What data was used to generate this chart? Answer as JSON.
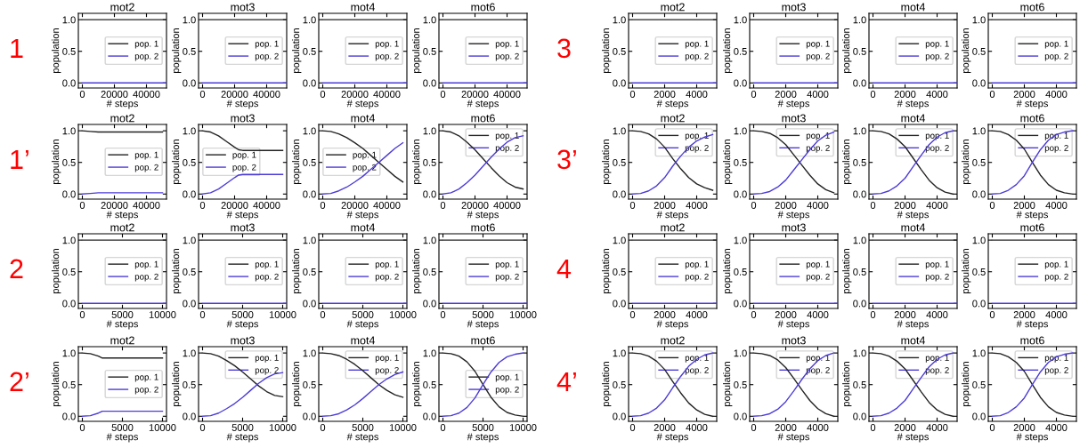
{
  "chart_data": [
    {
      "type": "line",
      "annotations": [
        "1"
      ],
      "title": "mot2",
      "xlabel": "# steps",
      "ylabel": "population",
      "xlim": [
        -2500,
        52500
      ],
      "xticks": [
        0,
        20000,
        40000
      ],
      "ylim": [
        -0.08,
        1.1
      ],
      "yticks": [
        {
          "value": 0,
          "label": "0.0"
        },
        {
          "value": 0.5,
          "label": "0.5"
        },
        {
          "value": 1,
          "label": "1.0"
        }
      ],
      "legend": "right",
      "x": [
        0,
        52000
      ],
      "series": [
        {
          "name": "pop. 1",
          "color": "#222222",
          "values": [
            1.0,
            1.0
          ]
        },
        {
          "name": "pop. 2",
          "color": "#4b3bd6",
          "values": [
            0.0,
            0.0
          ]
        }
      ]
    },
    {
      "type": "line",
      "title": "mot3",
      "xlabel": "# steps",
      "ylabel": "population",
      "xlim": [
        -2500,
        52500
      ],
      "xticks": [
        0,
        20000,
        40000
      ],
      "ylim": [
        -0.08,
        1.1
      ],
      "yticks": [
        {
          "value": 0,
          "label": "0.0"
        },
        {
          "value": 0.5,
          "label": "0.5"
        },
        {
          "value": 1,
          "label": "1.0"
        }
      ],
      "legend": "right",
      "x": [
        0,
        52000
      ],
      "series": [
        {
          "name": "pop. 1",
          "color": "#222222",
          "values": [
            1.0,
            1.0
          ]
        },
        {
          "name": "pop. 2",
          "color": "#4b3bd6",
          "values": [
            0.0,
            0.0
          ]
        }
      ]
    },
    {
      "type": "line",
      "title": "mot4",
      "xlabel": "# steps",
      "ylabel": "population",
      "xlim": [
        -2500,
        52500
      ],
      "xticks": [
        0,
        20000,
        40000
      ],
      "ylim": [
        -0.08,
        1.1
      ],
      "yticks": [
        {
          "value": 0,
          "label": "0.0"
        },
        {
          "value": 0.5,
          "label": "0.5"
        },
        {
          "value": 1,
          "label": "1.0"
        }
      ],
      "legend": "right",
      "x": [
        0,
        52000
      ],
      "series": [
        {
          "name": "pop. 1",
          "color": "#222222",
          "values": [
            1.0,
            1.0
          ]
        },
        {
          "name": "pop. 2",
          "color": "#4b3bd6",
          "values": [
            0.0,
            0.0
          ]
        }
      ]
    },
    {
      "type": "line",
      "title": "mot6",
      "xlabel": "# steps",
      "ylabel": "population",
      "xlim": [
        -2500,
        52500
      ],
      "xticks": [
        0,
        20000,
        40000
      ],
      "ylim": [
        -0.08,
        1.1
      ],
      "yticks": [
        {
          "value": 0,
          "label": "0.0"
        },
        {
          "value": 0.5,
          "label": "0.5"
        },
        {
          "value": 1,
          "label": "1.0"
        }
      ],
      "legend": "right",
      "x": [
        0,
        52000
      ],
      "series": [
        {
          "name": "pop. 1",
          "color": "#222222",
          "values": [
            1.0,
            1.0
          ]
        },
        {
          "name": "pop. 2",
          "color": "#4b3bd6",
          "values": [
            0.0,
            0.0
          ]
        }
      ]
    },
    {
      "type": "line",
      "annotations": [
        "3"
      ],
      "title": "mot2",
      "xlabel": "# steps",
      "ylabel": "population",
      "xlim": [
        -250,
        5250
      ],
      "xticks": [
        0,
        2000,
        4000
      ],
      "ylim": [
        -0.08,
        1.1
      ],
      "yticks": [
        {
          "value": 0,
          "label": "0.0"
        },
        {
          "value": 0.5,
          "label": "0.5"
        },
        {
          "value": 1,
          "label": "1.0"
        }
      ],
      "legend": "right",
      "x": [
        0,
        5200
      ],
      "series": [
        {
          "name": "pop. 1",
          "color": "#222222",
          "values": [
            1.0,
            1.0
          ]
        },
        {
          "name": "pop. 2",
          "color": "#4b3bd6",
          "values": [
            0.0,
            0.0
          ]
        }
      ]
    },
    {
      "type": "line",
      "title": "mot3",
      "xlabel": "# steps",
      "ylabel": "population",
      "xlim": [
        -250,
        5250
      ],
      "xticks": [
        0,
        2000,
        4000
      ],
      "ylim": [
        -0.08,
        1.1
      ],
      "yticks": [
        {
          "value": 0,
          "label": "0.0"
        },
        {
          "value": 0.5,
          "label": "0.5"
        },
        {
          "value": 1,
          "label": "1.0"
        }
      ],
      "legend": "right",
      "x": [
        0,
        5200
      ],
      "series": [
        {
          "name": "pop. 1",
          "color": "#222222",
          "values": [
            1.0,
            1.0
          ]
        },
        {
          "name": "pop. 2",
          "color": "#4b3bd6",
          "values": [
            0.0,
            0.0
          ]
        }
      ]
    },
    {
      "type": "line",
      "title": "mot4",
      "xlabel": "# steps",
      "ylabel": "population",
      "xlim": [
        -250,
        5250
      ],
      "xticks": [
        0,
        2000,
        4000
      ],
      "ylim": [
        -0.08,
        1.1
      ],
      "yticks": [
        {
          "value": 0,
          "label": "0.0"
        },
        {
          "value": 0.5,
          "label": "0.5"
        },
        {
          "value": 1,
          "label": "1.0"
        }
      ],
      "legend": "right",
      "x": [
        0,
        5200
      ],
      "series": [
        {
          "name": "pop. 1",
          "color": "#222222",
          "values": [
            1.0,
            1.0
          ]
        },
        {
          "name": "pop. 2",
          "color": "#4b3bd6",
          "values": [
            0.0,
            0.0
          ]
        }
      ]
    },
    {
      "type": "line",
      "title": "mot6",
      "xlabel": "# steps",
      "ylabel": "population",
      "xlim": [
        -250,
        5250
      ],
      "xticks": [
        0,
        2000,
        4000
      ],
      "ylim": [
        -0.08,
        1.1
      ],
      "yticks": [
        {
          "value": 0,
          "label": "0.0"
        },
        {
          "value": 0.5,
          "label": "0.5"
        },
        {
          "value": 1,
          "label": "1.0"
        }
      ],
      "legend": "right",
      "x": [
        0,
        5200
      ],
      "series": [
        {
          "name": "pop. 1",
          "color": "#222222",
          "values": [
            1.0,
            1.0
          ]
        },
        {
          "name": "pop. 2",
          "color": "#4b3bd6",
          "values": [
            0.0,
            0.0
          ]
        }
      ]
    },
    {
      "type": "line",
      "annotations": [
        "1’"
      ],
      "title": "mot2",
      "xlabel": "# steps",
      "ylabel": "population",
      "xlim": [
        -2500,
        52500
      ],
      "xticks": [
        0,
        20000,
        40000
      ],
      "ylim": [
        -0.08,
        1.1
      ],
      "yticks": [
        {
          "value": 0,
          "label": "0.0"
        },
        {
          "value": 0.5,
          "label": "0.5"
        },
        {
          "value": 1,
          "label": "1.0"
        }
      ],
      "legend": "right",
      "x": [
        0,
        5000,
        10000,
        50000
      ],
      "series": [
        {
          "name": "pop. 1",
          "color": "#222222",
          "values": [
            1.0,
            0.99,
            0.98,
            0.98
          ]
        },
        {
          "name": "pop. 2",
          "color": "#4b3bd6",
          "values": [
            0.0,
            0.01,
            0.02,
            0.02
          ]
        }
      ]
    },
    {
      "type": "line",
      "title": "mot3",
      "xlabel": "# steps",
      "ylabel": "population",
      "xlim": [
        -2500,
        52500
      ],
      "xticks": [
        0,
        20000,
        40000
      ],
      "ylim": [
        -0.08,
        1.1
      ],
      "yticks": [
        {
          "value": 0,
          "label": "0.0"
        },
        {
          "value": 0.5,
          "label": "0.5"
        },
        {
          "value": 1,
          "label": "1.0"
        }
      ],
      "legend": "left",
      "x": [
        0,
        5000,
        10000,
        15000,
        20000,
        22500,
        25000,
        50000
      ],
      "series": [
        {
          "name": "pop. 1",
          "color": "#222222",
          "values": [
            1.0,
            0.98,
            0.92,
            0.83,
            0.74,
            0.7,
            0.69,
            0.69
          ]
        },
        {
          "name": "pop. 2",
          "color": "#4b3bd6",
          "values": [
            0.0,
            0.02,
            0.08,
            0.17,
            0.26,
            0.3,
            0.31,
            0.31
          ]
        }
      ]
    },
    {
      "type": "line",
      "title": "mot4",
      "xlabel": "# steps",
      "ylabel": "population",
      "xlim": [
        -2500,
        52500
      ],
      "xticks": [
        0,
        20000,
        40000
      ],
      "ylim": [
        -0.08,
        1.1
      ],
      "yticks": [
        {
          "value": 0,
          "label": "0.0"
        },
        {
          "value": 0.5,
          "label": "0.5"
        },
        {
          "value": 1,
          "label": "1.0"
        }
      ],
      "legend": "left",
      "x": [
        0,
        5000,
        10000,
        15000,
        20000,
        25000,
        30000,
        35000,
        40000,
        45000,
        50000
      ],
      "series": [
        {
          "name": "pop. 1",
          "color": "#222222",
          "values": [
            1.0,
            0.99,
            0.95,
            0.89,
            0.81,
            0.72,
            0.61,
            0.5,
            0.39,
            0.28,
            0.19
          ]
        },
        {
          "name": "pop. 2",
          "color": "#4b3bd6",
          "values": [
            0.0,
            0.01,
            0.05,
            0.11,
            0.19,
            0.28,
            0.39,
            0.5,
            0.61,
            0.72,
            0.81
          ]
        }
      ]
    },
    {
      "type": "line",
      "title": "mot6",
      "xlabel": "# steps",
      "ylabel": "population",
      "xlim": [
        -2500,
        52500
      ],
      "xticks": [
        0,
        20000,
        40000
      ],
      "ylim": [
        -0.08,
        1.1
      ],
      "yticks": [
        {
          "value": 0,
          "label": "0.0"
        },
        {
          "value": 0.5,
          "label": "0.5"
        },
        {
          "value": 1,
          "label": "1.0"
        }
      ],
      "legend": "top right",
      "x": [
        0,
        5000,
        10000,
        15000,
        20000,
        25000,
        30000,
        35000,
        40000,
        45000,
        50000
      ],
      "series": [
        {
          "name": "pop. 1",
          "color": "#222222",
          "values": [
            1.0,
            0.98,
            0.92,
            0.82,
            0.7,
            0.56,
            0.42,
            0.29,
            0.18,
            0.11,
            0.08
          ]
        },
        {
          "name": "pop. 2",
          "color": "#4b3bd6",
          "values": [
            0.0,
            0.02,
            0.08,
            0.18,
            0.3,
            0.44,
            0.58,
            0.71,
            0.82,
            0.89,
            0.92
          ]
        }
      ]
    },
    {
      "type": "line",
      "annotations": [
        "3’"
      ],
      "title": "mot2",
      "xlabel": "# steps",
      "ylabel": "population",
      "xlim": [
        -250,
        5250
      ],
      "xticks": [
        0,
        2000,
        4000
      ],
      "ylim": [
        -0.08,
        1.1
      ],
      "yticks": [
        {
          "value": 0,
          "label": "0.0"
        },
        {
          "value": 0.5,
          "label": "0.5"
        },
        {
          "value": 1,
          "label": "1.0"
        }
      ],
      "legend": "top right",
      "x": [
        0,
        500,
        1000,
        1500,
        2000,
        2500,
        3000,
        3500,
        4000,
        4500,
        5000
      ],
      "series": [
        {
          "name": "pop. 1",
          "color": "#222222",
          "values": [
            1.0,
            0.99,
            0.95,
            0.87,
            0.74,
            0.56,
            0.4,
            0.26,
            0.16,
            0.1,
            0.06
          ]
        },
        {
          "name": "pop. 2",
          "color": "#4b3bd6",
          "values": [
            0.0,
            0.01,
            0.05,
            0.13,
            0.26,
            0.44,
            0.6,
            0.74,
            0.84,
            0.9,
            0.94
          ]
        }
      ]
    },
    {
      "type": "line",
      "title": "mot3",
      "xlabel": "# steps",
      "ylabel": "population",
      "xlim": [
        -250,
        5250
      ],
      "xticks": [
        0,
        2000,
        4000
      ],
      "ylim": [
        -0.08,
        1.1
      ],
      "yticks": [
        {
          "value": 0,
          "label": "0.0"
        },
        {
          "value": 0.5,
          "label": "0.5"
        },
        {
          "value": 1,
          "label": "1.0"
        }
      ],
      "legend": "top right",
      "x": [
        0,
        500,
        1000,
        1500,
        2000,
        2500,
        3000,
        3500,
        4000,
        4500,
        5000
      ],
      "series": [
        {
          "name": "pop. 1",
          "color": "#222222",
          "values": [
            1.0,
            0.99,
            0.96,
            0.89,
            0.78,
            0.62,
            0.46,
            0.3,
            0.16,
            0.07,
            0.02
          ]
        },
        {
          "name": "pop. 2",
          "color": "#4b3bd6",
          "values": [
            0.0,
            0.01,
            0.04,
            0.11,
            0.22,
            0.38,
            0.54,
            0.7,
            0.84,
            0.93,
            0.98
          ]
        }
      ]
    },
    {
      "type": "line",
      "title": "mot4",
      "xlabel": "# steps",
      "ylabel": "population",
      "xlim": [
        -250,
        5250
      ],
      "xticks": [
        0,
        2000,
        4000
      ],
      "ylim": [
        -0.08,
        1.1
      ],
      "yticks": [
        {
          "value": 0,
          "label": "0.0"
        },
        {
          "value": 0.5,
          "label": "0.5"
        },
        {
          "value": 1,
          "label": "1.0"
        }
      ],
      "legend": "top right",
      "x": [
        0,
        500,
        1000,
        1500,
        2000,
        2500,
        3000,
        3500,
        4000,
        4500,
        5000
      ],
      "series": [
        {
          "name": "pop. 1",
          "color": "#222222",
          "values": [
            1.0,
            0.99,
            0.95,
            0.87,
            0.75,
            0.57,
            0.39,
            0.22,
            0.1,
            0.03,
            0.0
          ]
        },
        {
          "name": "pop. 2",
          "color": "#4b3bd6",
          "values": [
            0.0,
            0.01,
            0.05,
            0.13,
            0.25,
            0.43,
            0.61,
            0.78,
            0.9,
            0.97,
            1.0
          ]
        }
      ]
    },
    {
      "type": "line",
      "title": "mot6",
      "xlabel": "# steps",
      "ylabel": "population",
      "xlim": [
        -250,
        5250
      ],
      "xticks": [
        0,
        2000,
        4000
      ],
      "ylim": [
        -0.08,
        1.1
      ],
      "yticks": [
        {
          "value": 0,
          "label": "0.0"
        },
        {
          "value": 0.5,
          "label": "0.5"
        },
        {
          "value": 1,
          "label": "1.0"
        }
      ],
      "legend": "top right",
      "x": [
        0,
        500,
        1000,
        1500,
        2000,
        2500,
        3000,
        3500,
        4000,
        4500,
        5000
      ],
      "series": [
        {
          "name": "pop. 1",
          "color": "#222222",
          "values": [
            1.0,
            0.99,
            0.94,
            0.85,
            0.71,
            0.5,
            0.3,
            0.15,
            0.06,
            0.02,
            0.0
          ]
        },
        {
          "name": "pop. 2",
          "color": "#4b3bd6",
          "values": [
            0.0,
            0.01,
            0.06,
            0.15,
            0.29,
            0.5,
            0.7,
            0.85,
            0.94,
            0.98,
            1.0
          ]
        }
      ]
    },
    {
      "type": "line",
      "annotations": [
        "2"
      ],
      "title": "mot2",
      "xlabel": "# steps",
      "ylabel": "population",
      "xlim": [
        -500,
        10500
      ],
      "xticks": [
        0,
        5000,
        10000
      ],
      "ylim": [
        -0.08,
        1.1
      ],
      "yticks": [
        {
          "value": 0,
          "label": "0.0"
        },
        {
          "value": 0.5,
          "label": "0.5"
        },
        {
          "value": 1,
          "label": "1.0"
        }
      ],
      "legend": "right",
      "x": [
        0,
        10400
      ],
      "series": [
        {
          "name": "pop. 1",
          "color": "#222222",
          "values": [
            1.0,
            1.0
          ]
        },
        {
          "name": "pop. 2",
          "color": "#4b3bd6",
          "values": [
            0.0,
            0.0
          ]
        }
      ]
    },
    {
      "type": "line",
      "title": "mot3",
      "xlabel": "# steps",
      "ylabel": "population",
      "xlim": [
        -500,
        10500
      ],
      "xticks": [
        0,
        5000,
        10000
      ],
      "ylim": [
        -0.08,
        1.1
      ],
      "yticks": [
        {
          "value": 0,
          "label": "0.0"
        },
        {
          "value": 0.5,
          "label": "0.5"
        },
        {
          "value": 1,
          "label": "1.0"
        }
      ],
      "legend": "right",
      "x": [
        0,
        10400
      ],
      "series": [
        {
          "name": "pop. 1",
          "color": "#222222",
          "values": [
            1.0,
            1.0
          ]
        },
        {
          "name": "pop. 2",
          "color": "#4b3bd6",
          "values": [
            0.0,
            0.0
          ]
        }
      ]
    },
    {
      "type": "line",
      "title": "mot4",
      "xlabel": "# steps",
      "ylabel": "population",
      "xlim": [
        -500,
        10500
      ],
      "xticks": [
        0,
        5000,
        10000
      ],
      "ylim": [
        -0.08,
        1.1
      ],
      "yticks": [
        {
          "value": 0,
          "label": "0.0"
        },
        {
          "value": 0.5,
          "label": "0.5"
        },
        {
          "value": 1,
          "label": "1.0"
        }
      ],
      "legend": "right",
      "x": [
        0,
        10400
      ],
      "series": [
        {
          "name": "pop. 1",
          "color": "#222222",
          "values": [
            1.0,
            1.0
          ]
        },
        {
          "name": "pop. 2",
          "color": "#4b3bd6",
          "values": [
            0.0,
            0.0
          ]
        }
      ]
    },
    {
      "type": "line",
      "title": "mot6",
      "xlabel": "# steps",
      "ylabel": "population",
      "xlim": [
        -500,
        10500
      ],
      "xticks": [
        0,
        5000,
        10000
      ],
      "ylim": [
        -0.08,
        1.1
      ],
      "yticks": [
        {
          "value": 0,
          "label": "0.0"
        },
        {
          "value": 0.5,
          "label": "0.5"
        },
        {
          "value": 1,
          "label": "1.0"
        }
      ],
      "legend": "right",
      "x": [
        0,
        10400
      ],
      "series": [
        {
          "name": "pop. 1",
          "color": "#222222",
          "values": [
            1.0,
            1.0
          ]
        },
        {
          "name": "pop. 2",
          "color": "#4b3bd6",
          "values": [
            0.0,
            0.0
          ]
        }
      ]
    },
    {
      "type": "line",
      "annotations": [
        "4"
      ],
      "title": "mot2",
      "xlabel": "# steps",
      "ylabel": "population",
      "xlim": [
        -250,
        5250
      ],
      "xticks": [
        0,
        2000,
        4000
      ],
      "ylim": [
        -0.08,
        1.1
      ],
      "yticks": [
        {
          "value": 0,
          "label": "0.0"
        },
        {
          "value": 0.5,
          "label": "0.5"
        },
        {
          "value": 1,
          "label": "1.0"
        }
      ],
      "legend": "right",
      "x": [
        0,
        5200
      ],
      "series": [
        {
          "name": "pop. 1",
          "color": "#222222",
          "values": [
            1.0,
            1.0
          ]
        },
        {
          "name": "pop. 2",
          "color": "#4b3bd6",
          "values": [
            0.0,
            0.0
          ]
        }
      ]
    },
    {
      "type": "line",
      "title": "mot3",
      "xlabel": "# steps",
      "ylabel": "population",
      "xlim": [
        -250,
        5250
      ],
      "xticks": [
        0,
        2000,
        4000
      ],
      "ylim": [
        -0.08,
        1.1
      ],
      "yticks": [
        {
          "value": 0,
          "label": "0.0"
        },
        {
          "value": 0.5,
          "label": "0.5"
        },
        {
          "value": 1,
          "label": "1.0"
        }
      ],
      "legend": "right",
      "x": [
        0,
        5200
      ],
      "series": [
        {
          "name": "pop. 1",
          "color": "#222222",
          "values": [
            1.0,
            1.0
          ]
        },
        {
          "name": "pop. 2",
          "color": "#4b3bd6",
          "values": [
            0.0,
            0.0
          ]
        }
      ]
    },
    {
      "type": "line",
      "title": "mot4",
      "xlabel": "# steps",
      "ylabel": "population",
      "xlim": [
        -250,
        5250
      ],
      "xticks": [
        0,
        2000,
        4000
      ],
      "ylim": [
        -0.08,
        1.1
      ],
      "yticks": [
        {
          "value": 0,
          "label": "0.0"
        },
        {
          "value": 0.5,
          "label": "0.5"
        },
        {
          "value": 1,
          "label": "1.0"
        }
      ],
      "legend": "right",
      "x": [
        0,
        5200
      ],
      "series": [
        {
          "name": "pop. 1",
          "color": "#222222",
          "values": [
            1.0,
            1.0
          ]
        },
        {
          "name": "pop. 2",
          "color": "#4b3bd6",
          "values": [
            0.0,
            0.0
          ]
        }
      ]
    },
    {
      "type": "line",
      "title": "mot6",
      "xlabel": "# steps",
      "ylabel": "population",
      "xlim": [
        -250,
        5250
      ],
      "xticks": [
        0,
        2000,
        4000
      ],
      "ylim": [
        -0.08,
        1.1
      ],
      "yticks": [
        {
          "value": 0,
          "label": "0.0"
        },
        {
          "value": 0.5,
          "label": "0.5"
        },
        {
          "value": 1,
          "label": "1.0"
        }
      ],
      "legend": "right",
      "x": [
        0,
        5200
      ],
      "series": [
        {
          "name": "pop. 1",
          "color": "#222222",
          "values": [
            1.0,
            1.0
          ]
        },
        {
          "name": "pop. 2",
          "color": "#4b3bd6",
          "values": [
            0.0,
            0.0
          ]
        }
      ]
    },
    {
      "type": "line",
      "annotations": [
        "2’"
      ],
      "title": "mot2",
      "xlabel": "# steps",
      "ylabel": "population",
      "xlim": [
        -500,
        10500
      ],
      "xticks": [
        0,
        5000,
        10000
      ],
      "ylim": [
        -0.08,
        1.1
      ],
      "yticks": [
        {
          "value": 0,
          "label": "0.0"
        },
        {
          "value": 0.5,
          "label": "0.5"
        },
        {
          "value": 1,
          "label": "1.0"
        }
      ],
      "legend": "right",
      "x": [
        0,
        1000,
        2000,
        2500,
        10000
      ],
      "series": [
        {
          "name": "pop. 1",
          "color": "#222222",
          "values": [
            1.0,
            0.99,
            0.95,
            0.92,
            0.92
          ]
        },
        {
          "name": "pop. 2",
          "color": "#4b3bd6",
          "values": [
            0.0,
            0.01,
            0.05,
            0.08,
            0.08
          ]
        }
      ]
    },
    {
      "type": "line",
      "title": "mot3",
      "xlabel": "# steps",
      "ylabel": "population",
      "xlim": [
        -500,
        10500
      ],
      "xticks": [
        0,
        5000,
        10000
      ],
      "ylim": [
        -0.08,
        1.1
      ],
      "yticks": [
        {
          "value": 0,
          "label": "0.0"
        },
        {
          "value": 0.5,
          "label": "0.5"
        },
        {
          "value": 1,
          "label": "1.0"
        }
      ],
      "legend": "top right",
      "x": [
        0,
        1000,
        2000,
        3000,
        4000,
        5000,
        6000,
        7000,
        8000,
        9000,
        10000
      ],
      "series": [
        {
          "name": "pop. 1",
          "color": "#222222",
          "values": [
            1.0,
            0.99,
            0.95,
            0.88,
            0.8,
            0.7,
            0.59,
            0.48,
            0.39,
            0.33,
            0.31
          ]
        },
        {
          "name": "pop. 2",
          "color": "#4b3bd6",
          "values": [
            0.0,
            0.01,
            0.05,
            0.12,
            0.2,
            0.3,
            0.41,
            0.52,
            0.61,
            0.67,
            0.69
          ]
        }
      ]
    },
    {
      "type": "line",
      "title": "mot4",
      "xlabel": "# steps",
      "ylabel": "population",
      "xlim": [
        -500,
        10500
      ],
      "xticks": [
        0,
        5000,
        10000
      ],
      "ylim": [
        -0.08,
        1.1
      ],
      "yticks": [
        {
          "value": 0,
          "label": "0.0"
        },
        {
          "value": 0.5,
          "label": "0.5"
        },
        {
          "value": 1,
          "label": "1.0"
        }
      ],
      "legend": "top right",
      "x": [
        0,
        1000,
        2000,
        3000,
        4000,
        5000,
        6000,
        7000,
        8000,
        9000,
        10000
      ],
      "series": [
        {
          "name": "pop. 1",
          "color": "#222222",
          "values": [
            1.0,
            0.99,
            0.96,
            0.9,
            0.82,
            0.72,
            0.61,
            0.5,
            0.41,
            0.34,
            0.3
          ]
        },
        {
          "name": "pop. 2",
          "color": "#4b3bd6",
          "values": [
            0.0,
            0.01,
            0.04,
            0.1,
            0.18,
            0.28,
            0.39,
            0.5,
            0.59,
            0.66,
            0.7
          ]
        }
      ]
    },
    {
      "type": "line",
      "title": "mot6",
      "xlabel": "# steps",
      "ylabel": "population",
      "xlim": [
        -500,
        10500
      ],
      "xticks": [
        0,
        5000,
        10000
      ],
      "ylim": [
        -0.08,
        1.1
      ],
      "yticks": [
        {
          "value": 0,
          "label": "0.0"
        },
        {
          "value": 0.5,
          "label": "0.5"
        },
        {
          "value": 1,
          "label": "1.0"
        }
      ],
      "legend": "right",
      "x": [
        0,
        1000,
        2000,
        3000,
        4000,
        5000,
        6000,
        7000,
        8000,
        9000,
        10000
      ],
      "series": [
        {
          "name": "pop. 1",
          "color": "#222222",
          "values": [
            1.0,
            0.99,
            0.95,
            0.86,
            0.71,
            0.5,
            0.3,
            0.15,
            0.06,
            0.02,
            0.0
          ]
        },
        {
          "name": "pop. 2",
          "color": "#4b3bd6",
          "values": [
            0.0,
            0.01,
            0.05,
            0.14,
            0.29,
            0.5,
            0.7,
            0.85,
            0.94,
            0.98,
            1.0
          ]
        }
      ]
    },
    {
      "type": "line",
      "annotations": [
        "4’"
      ],
      "title": "mot2",
      "xlabel": "# steps",
      "ylabel": "population",
      "xlim": [
        -250,
        5250
      ],
      "xticks": [
        0,
        2000,
        4000
      ],
      "ylim": [
        -0.08,
        1.1
      ],
      "yticks": [
        {
          "value": 0,
          "label": "0.0"
        },
        {
          "value": 0.5,
          "label": "0.5"
        },
        {
          "value": 1,
          "label": "1.0"
        }
      ],
      "legend": "top right",
      "x": [
        0,
        500,
        1000,
        1500,
        2000,
        2500,
        3000,
        3500,
        4000,
        4500,
        5000
      ],
      "series": [
        {
          "name": "pop. 1",
          "color": "#222222",
          "values": [
            1.0,
            0.99,
            0.95,
            0.87,
            0.74,
            0.55,
            0.37,
            0.21,
            0.1,
            0.03,
            0.0
          ]
        },
        {
          "name": "pop. 2",
          "color": "#4b3bd6",
          "values": [
            0.0,
            0.01,
            0.05,
            0.13,
            0.26,
            0.45,
            0.63,
            0.79,
            0.9,
            0.97,
            1.0
          ]
        }
      ]
    },
    {
      "type": "line",
      "title": "mot3",
      "xlabel": "# steps",
      "ylabel": "population",
      "xlim": [
        -250,
        5250
      ],
      "xticks": [
        0,
        2000,
        4000
      ],
      "ylim": [
        -0.08,
        1.1
      ],
      "yticks": [
        {
          "value": 0,
          "label": "0.0"
        },
        {
          "value": 0.5,
          "label": "0.5"
        },
        {
          "value": 1,
          "label": "1.0"
        }
      ],
      "legend": "top right",
      "x": [
        0,
        500,
        1000,
        1500,
        2000,
        2500,
        3000,
        3500,
        4000,
        4500,
        5000
      ],
      "series": [
        {
          "name": "pop. 1",
          "color": "#222222",
          "values": [
            1.0,
            0.99,
            0.96,
            0.89,
            0.77,
            0.6,
            0.42,
            0.25,
            0.12,
            0.04,
            0.0
          ]
        },
        {
          "name": "pop. 2",
          "color": "#4b3bd6",
          "values": [
            0.0,
            0.01,
            0.04,
            0.11,
            0.23,
            0.4,
            0.58,
            0.75,
            0.88,
            0.96,
            1.0
          ]
        }
      ]
    },
    {
      "type": "line",
      "title": "mot4",
      "xlabel": "# steps",
      "ylabel": "population",
      "xlim": [
        -250,
        5250
      ],
      "xticks": [
        0,
        2000,
        4000
      ],
      "ylim": [
        -0.08,
        1.1
      ],
      "yticks": [
        {
          "value": 0,
          "label": "0.0"
        },
        {
          "value": 0.5,
          "label": "0.5"
        },
        {
          "value": 1,
          "label": "1.0"
        }
      ],
      "legend": "top right",
      "x": [
        0,
        500,
        1000,
        1500,
        2000,
        2500,
        3000,
        3500,
        4000,
        4500,
        5000
      ],
      "series": [
        {
          "name": "pop. 1",
          "color": "#222222",
          "values": [
            1.0,
            0.99,
            0.95,
            0.87,
            0.75,
            0.57,
            0.39,
            0.22,
            0.1,
            0.03,
            0.0
          ]
        },
        {
          "name": "pop. 2",
          "color": "#4b3bd6",
          "values": [
            0.0,
            0.01,
            0.05,
            0.13,
            0.25,
            0.43,
            0.61,
            0.78,
            0.9,
            0.97,
            1.0
          ]
        }
      ]
    },
    {
      "type": "line",
      "title": "mot6",
      "xlabel": "# steps",
      "ylabel": "population",
      "xlim": [
        -250,
        5250
      ],
      "xticks": [
        0,
        2000,
        4000
      ],
      "ylim": [
        -0.08,
        1.1
      ],
      "yticks": [
        {
          "value": 0,
          "label": "0.0"
        },
        {
          "value": 0.5,
          "label": "0.5"
        },
        {
          "value": 1,
          "label": "1.0"
        }
      ],
      "legend": "top right",
      "x": [
        0,
        500,
        1000,
        1500,
        2000,
        2500,
        3000,
        3500,
        4000,
        4500,
        5000
      ],
      "series": [
        {
          "name": "pop. 1",
          "color": "#222222",
          "values": [
            1.0,
            0.99,
            0.94,
            0.85,
            0.71,
            0.5,
            0.3,
            0.15,
            0.06,
            0.02,
            0.0
          ]
        },
        {
          "name": "pop. 2",
          "color": "#4b3bd6",
          "values": [
            0.0,
            0.01,
            0.06,
            0.15,
            0.29,
            0.5,
            0.7,
            0.85,
            0.94,
            0.98,
            1.0
          ]
        }
      ]
    }
  ]
}
